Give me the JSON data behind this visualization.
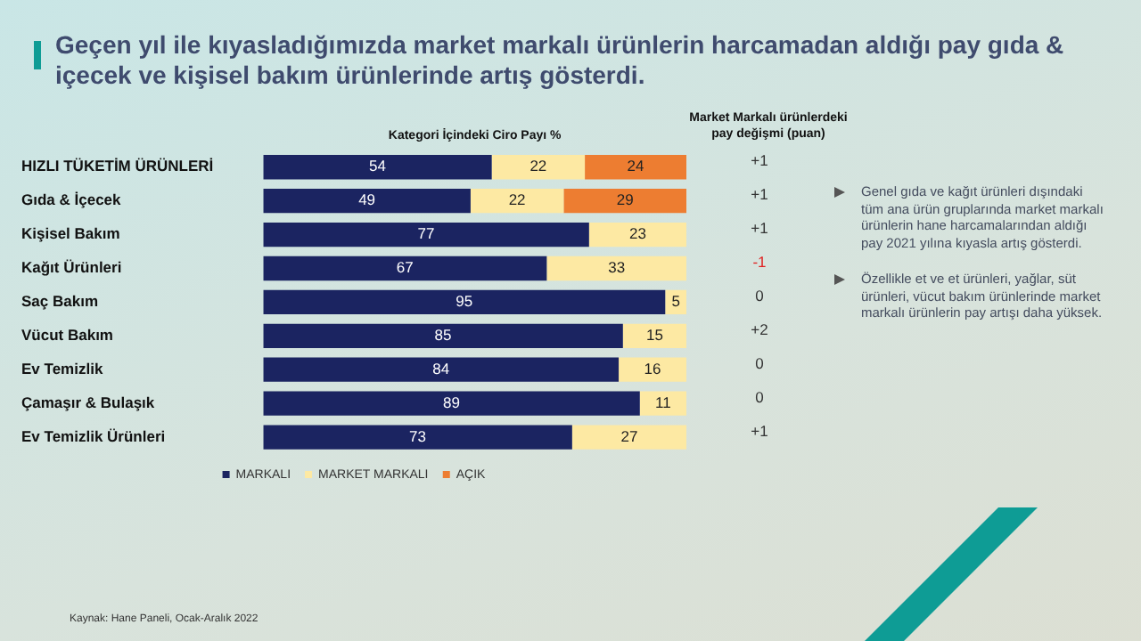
{
  "chart_data": {
    "type": "bar",
    "orientation": "horizontal",
    "stacked": true,
    "title": "Geçen yıl ile kıyasladığımızda market markalı ürünlerin harcamadan aldığı pay gıda & içecek ve kişisel bakım ürünlerinde artış gösterdi.",
    "xlabel": "Kategori İçindeki Ciro Payı %",
    "categories": [
      "HIZLI TÜKETİM ÜRÜNLERİ",
      "Gıda & İçecek",
      "Kişisel Bakım",
      "Kağıt Ürünleri",
      "Saç Bakım",
      "Vücut Bakım",
      "Ev Temizlik",
      "Çamaşır & Bulaşık",
      "Ev Temizlik Ürünleri"
    ],
    "series": [
      {
        "name": "MARKALI",
        "color": "#1b2461",
        "values": [
          54,
          49,
          77,
          67,
          95,
          85,
          84,
          89,
          73
        ]
      },
      {
        "name": "MARKET MARKALI",
        "color": "#fde9a3",
        "values": [
          22,
          22,
          23,
          33,
          5,
          15,
          16,
          11,
          27
        ]
      },
      {
        "name": "AÇIK",
        "color": "#ed7d31",
        "values": [
          24,
          29,
          null,
          null,
          null,
          null,
          null,
          null,
          null
        ]
      }
    ],
    "xlim": [
      0,
      100
    ],
    "tick_labels": "y",
    "grid": false,
    "legend": "bottom",
    "data_labels": true,
    "annotations": [
      "Market Markalı ürünlerdeki pay değişmi (puan)",
      "+1",
      "+1",
      "+1",
      "-1",
      "0",
      "+2",
      "0",
      "0",
      "+1",
      "Genel gıda ve kağıt ürünleri dışındaki tüm ana ürün gruplarında market markalı ürünlerin hane harcamalarından aldığı pay 2021 yılına kıyasla artış gösterdi.",
      "Özellikle et ve et ürünleri, yağlar, süt ürünleri, vücut bakım ürünlerinde market markalı ürünlerin pay artışı daha yüksek.",
      "Kaynak: Hane Paneli, Ocak-Aralık 2022"
    ]
  }
}
